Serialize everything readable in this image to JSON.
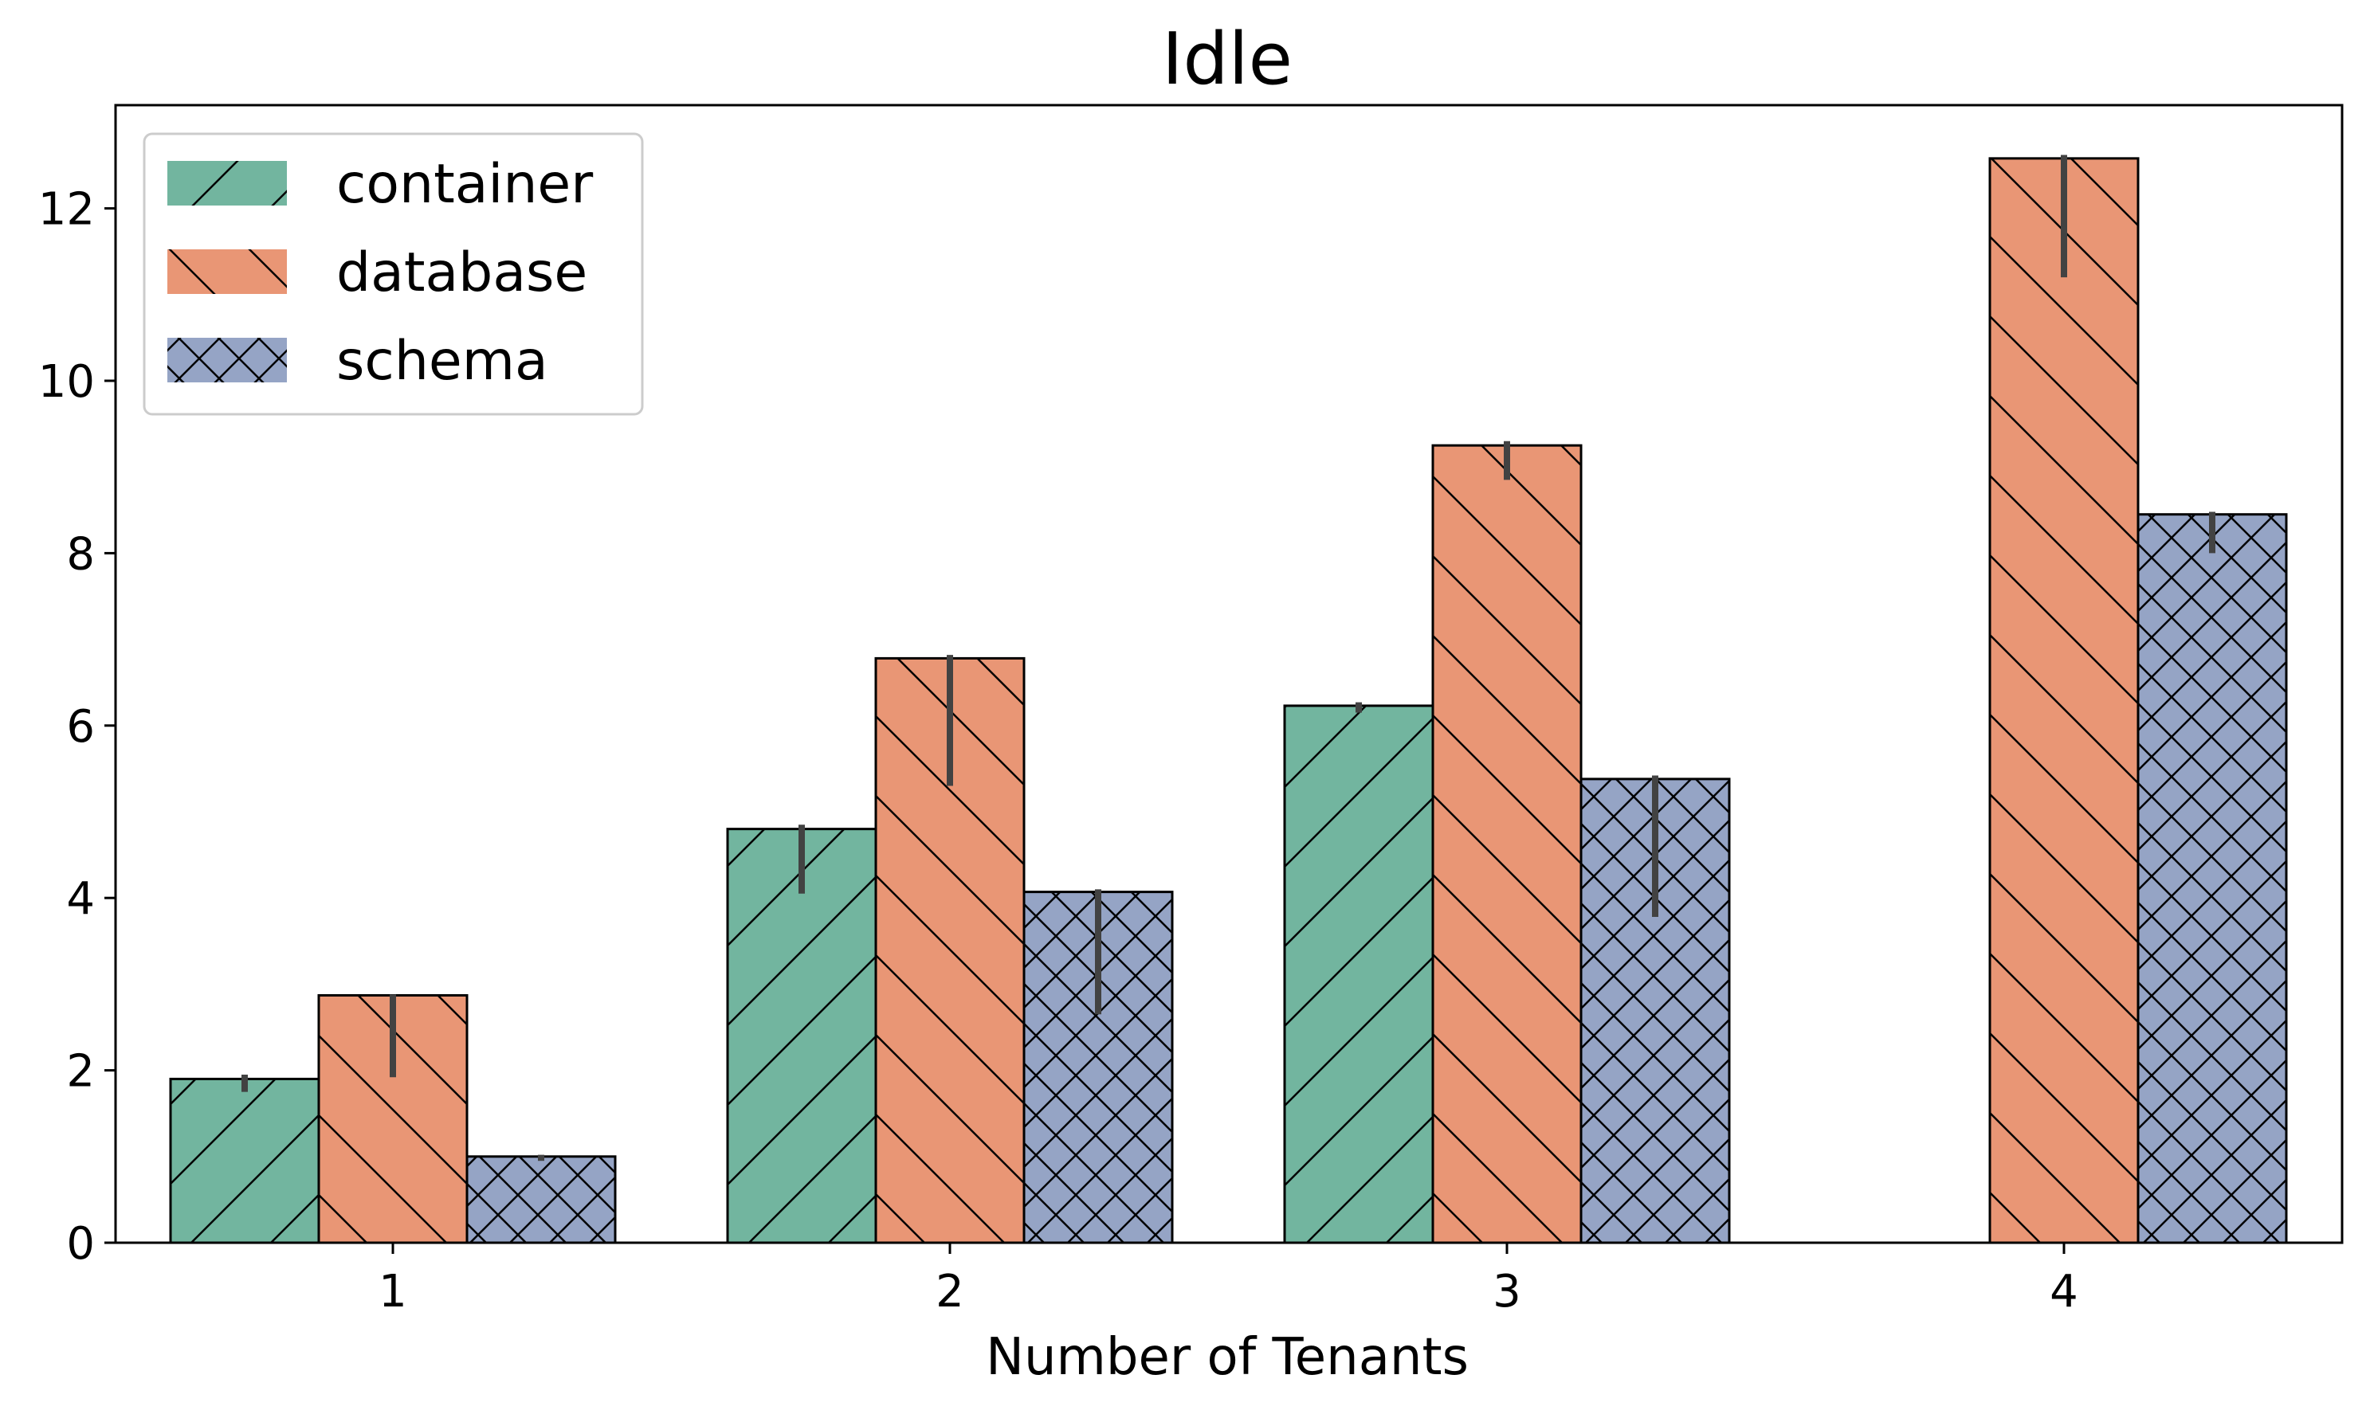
{
  "chart_data": {
    "type": "bar",
    "title": "Idle",
    "xlabel": "Number of Tenants",
    "ylabel": "",
    "categories": [
      "1",
      "2",
      "3",
      "4"
    ],
    "ylim": [
      0,
      13.2
    ],
    "yticks": [
      0,
      2,
      4,
      6,
      8,
      10,
      12
    ],
    "legend_position": "upper-left",
    "series": [
      {
        "name": "container",
        "color": "#72b59f",
        "hatch": "forward-diagonal",
        "values": [
          1.9,
          4.8,
          6.23,
          null
        ],
        "error_low": [
          1.75,
          4.05,
          6.15,
          null
        ],
        "error_high": [
          1.95,
          4.85,
          6.27,
          null
        ]
      },
      {
        "name": "database",
        "color": "#e99675",
        "hatch": "back-diagonal",
        "values": [
          2.87,
          6.78,
          9.25,
          12.58
        ],
        "error_low": [
          1.92,
          5.3,
          8.85,
          11.2
        ],
        "error_high": [
          2.88,
          6.82,
          9.3,
          12.62
        ]
      },
      {
        "name": "schema",
        "color": "#95a4c5",
        "hatch": "cross",
        "values": [
          1.0,
          4.07,
          5.38,
          8.45
        ],
        "error_low": [
          0.95,
          2.65,
          3.78,
          8.0
        ],
        "error_high": [
          1.02,
          4.1,
          5.42,
          8.48
        ]
      }
    ]
  }
}
